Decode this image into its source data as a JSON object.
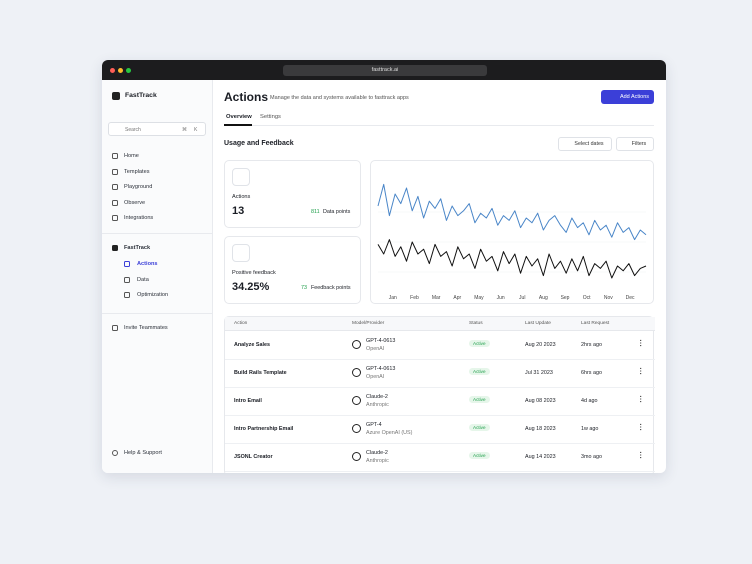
{
  "browser": {
    "url": "fasttrack.ai"
  },
  "sidebar": {
    "brand": "FastTrack",
    "search": "Search",
    "shortcut_keys": [
      "⌘",
      "K"
    ],
    "nav": [
      "Home",
      "Templates",
      "Playground",
      "Observe",
      "Integrations"
    ],
    "section": "FastTrack",
    "subnav": [
      "Actions",
      "Data",
      "Optimization"
    ],
    "invite": "Invite Teammates",
    "help": "Help & Support"
  },
  "header": {
    "title": "Actions",
    "subtitle": "Manage the data and systems available to fasttrack apps",
    "button": "Add Actions",
    "tabs": [
      "Overview",
      "Settings"
    ]
  },
  "usage": {
    "title": "Usage and Feedback",
    "select_dates": "Select dates",
    "filters": "Filters",
    "cards": [
      {
        "label": "Actions",
        "value": "13",
        "delta": "811",
        "delta_label": "Data points"
      },
      {
        "label": "Positive feedback",
        "value": "34.25%",
        "delta": "73",
        "delta_label": "Feedback points"
      }
    ]
  },
  "chart_data": {
    "type": "line",
    "x": [
      0,
      1,
      2,
      3,
      4,
      5,
      6,
      7,
      8,
      9,
      10,
      11,
      12,
      13,
      14,
      15,
      16,
      17,
      18,
      19,
      20,
      21,
      22,
      23,
      24,
      25,
      26,
      27,
      28,
      29,
      30,
      31,
      32,
      33,
      34,
      35,
      36,
      37,
      38,
      39,
      40,
      41,
      42,
      43,
      44,
      45,
      46,
      47
    ],
    "xlim": [
      0,
      47
    ],
    "xticks": [
      {
        "value": 2.6,
        "label": "Jan"
      },
      {
        "value": 6.4,
        "label": "Feb"
      },
      {
        "value": 10.2,
        "label": "Mar"
      },
      {
        "value": 13.9,
        "label": "Apr"
      },
      {
        "value": 17.7,
        "label": "May"
      },
      {
        "value": 21.5,
        "label": "Jun"
      },
      {
        "value": 25.3,
        "label": "Jul"
      },
      {
        "value": 29.0,
        "label": "Aug"
      },
      {
        "value": 32.8,
        "label": "Sep"
      },
      {
        "value": 36.6,
        "label": "Oct"
      },
      {
        "value": 40.4,
        "label": "Nov"
      },
      {
        "value": 44.2,
        "label": "Dec"
      }
    ],
    "ylim": [
      0,
      100
    ],
    "series": [
      {
        "color": "#4a86c8",
        "values": [
          70,
          88,
          62,
          80,
          72,
          85,
          66,
          78,
          60,
          74,
          68,
          76,
          58,
          70,
          62,
          66,
          72,
          56,
          64,
          60,
          68,
          54,
          62,
          58,
          66,
          52,
          60,
          56,
          64,
          50,
          58,
          62,
          54,
          48,
          60,
          52,
          56,
          46,
          58,
          50,
          54,
          44,
          56,
          48,
          52,
          42,
          50,
          46
        ]
      },
      {
        "color": "#111111",
        "values": [
          38,
          30,
          42,
          28,
          36,
          24,
          40,
          30,
          34,
          22,
          38,
          28,
          32,
          20,
          36,
          26,
          30,
          18,
          34,
          24,
          28,
          16,
          32,
          22,
          30,
          14,
          28,
          20,
          26,
          12,
          30,
          18,
          24,
          14,
          26,
          16,
          28,
          12,
          22,
          18,
          24,
          10,
          20,
          16,
          22,
          12,
          18,
          20
        ]
      }
    ]
  },
  "table": {
    "columns": [
      "Action",
      "Model/Provider",
      "Status",
      "Last Update",
      "Last Request"
    ],
    "rows": [
      [
        "Analyze Sales",
        "GPT-4-0613",
        "OpenAI",
        "Active",
        "Aug 20 2023",
        "2hrs ago"
      ],
      [
        "Build Rails Template",
        "GPT-4-0613",
        "OpenAI",
        "Active",
        "Jul 31 2023",
        "6hrs ago"
      ],
      [
        "Intro Email",
        "Claude-2",
        "Anthropic",
        "Active",
        "Aug 08 2023",
        "4d ago"
      ],
      [
        "Intro Partnership Email",
        "GPT-4",
        "Azure OpenAI (US)",
        "Active",
        "Aug 18 2023",
        "1w ago"
      ],
      [
        "JSONL Creator",
        "Claude-2",
        "Anthropic",
        "Active",
        "Aug 14 2023",
        "3mo ago"
      ]
    ]
  }
}
